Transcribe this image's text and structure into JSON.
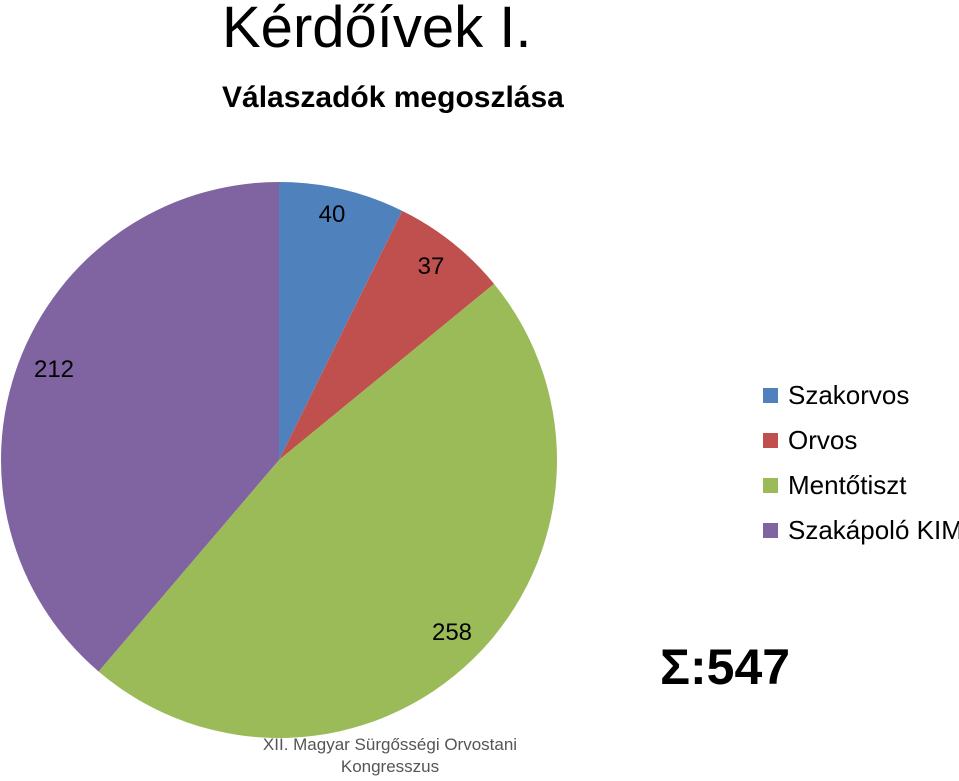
{
  "slide": {
    "title": "Kérdőívek I.",
    "subtitle": "Válaszadók megoszlása",
    "total": "Σ:547",
    "footer": "XII. Magyar Sürgősségi Orvostani Kongresszus"
  },
  "chart_data": {
    "type": "pie",
    "categories": [
      "Szakorvos",
      "Orvos",
      "Mentőtiszt",
      "Szakápoló KIM"
    ],
    "values": [
      40,
      37,
      258,
      212
    ],
    "colors": [
      "#4F81BD",
      "#C0504D",
      "#9BBB59",
      "#8064A2"
    ],
    "data_labels": [
      "40",
      "37",
      "258",
      "212"
    ],
    "legend_position": "right",
    "start_angle": "12 o'clock, clockwise"
  }
}
